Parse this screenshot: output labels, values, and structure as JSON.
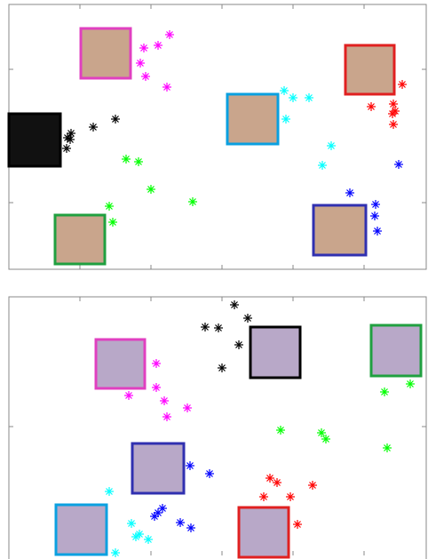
{
  "chart_data": [
    {
      "type": "scatter",
      "xlim": [
        10,
        480
      ],
      "ylim": [
        0,
        298
      ],
      "xticks": [
        90,
        170,
        250,
        330,
        410
      ],
      "yticks": [
        75,
        225
      ],
      "series": [
        {
          "color": "#ff00ff",
          "x": [
            162,
            178,
            191,
            158,
            164,
            188
          ],
          "values": [
            249,
            252,
            264,
            232,
            217,
            205
          ]
        },
        {
          "color": "#000000",
          "x": [
            130,
            105,
            80,
            79,
            75,
            76
          ],
          "values": [
            169,
            160,
            153,
            146,
            136,
            148
          ]
        },
        {
          "color": "#00ff00",
          "x": [
            142,
            156,
            170,
            217,
            123,
            127
          ],
          "values": [
            124,
            121,
            90,
            76,
            71,
            53
          ]
        },
        {
          "color": "#00ffff",
          "x": [
            320,
            330,
            348,
            322,
            373,
            363
          ],
          "values": [
            201,
            193,
            193,
            169,
            139,
            117
          ]
        },
        {
          "color": "#ff0000",
          "x": [
            453,
            418,
            443,
            445,
            442,
            443
          ],
          "values": [
            208,
            183,
            186,
            178,
            175,
            163
          ]
        },
        {
          "color": "#0000ff",
          "x": [
            449,
            394,
            423,
            422,
            425
          ],
          "values": [
            118,
            86,
            73,
            60,
            43
          ]
        }
      ]
    },
    {
      "type": "scatter",
      "xlim": [
        10,
        480
      ],
      "ylim": [
        0,
        291
      ],
      "xticks": [
        90,
        170,
        250,
        330,
        410
      ],
      "yticks": [
        145
      ],
      "series": [
        {
          "color": "#000000",
          "x": [
            264,
            279,
            231,
            246,
            269,
            250
          ],
          "values": [
            282,
            267,
            257,
            256,
            237,
            211
          ]
        },
        {
          "color": "#ff00ff",
          "x": [
            176,
            176,
            145,
            185,
            211,
            188
          ],
          "values": [
            216,
            189,
            180,
            174,
            166,
            156
          ]
        },
        {
          "color": "#00ff00",
          "x": [
            433,
            462,
            316,
            362,
            367,
            436
          ],
          "values": [
            184,
            193,
            141,
            138,
            131,
            121
          ]
        },
        {
          "color": "#0000ff",
          "x": [
            214,
            236,
            183,
            178,
            174,
            203,
            215
          ],
          "values": [
            101,
            92,
            53,
            48,
            44,
            37,
            31
          ]
        },
        {
          "color": "#00ffff",
          "x": [
            123,
            148,
            157,
            167,
            153,
            130
          ],
          "values": [
            72,
            36,
            24,
            18,
            21,
            3
          ]
        },
        {
          "color": "#ff0000",
          "x": [
            304,
            312,
            297,
            327,
            352,
            335
          ],
          "values": [
            87,
            82,
            66,
            66,
            79,
            35
          ]
        }
      ]
    }
  ]
}
